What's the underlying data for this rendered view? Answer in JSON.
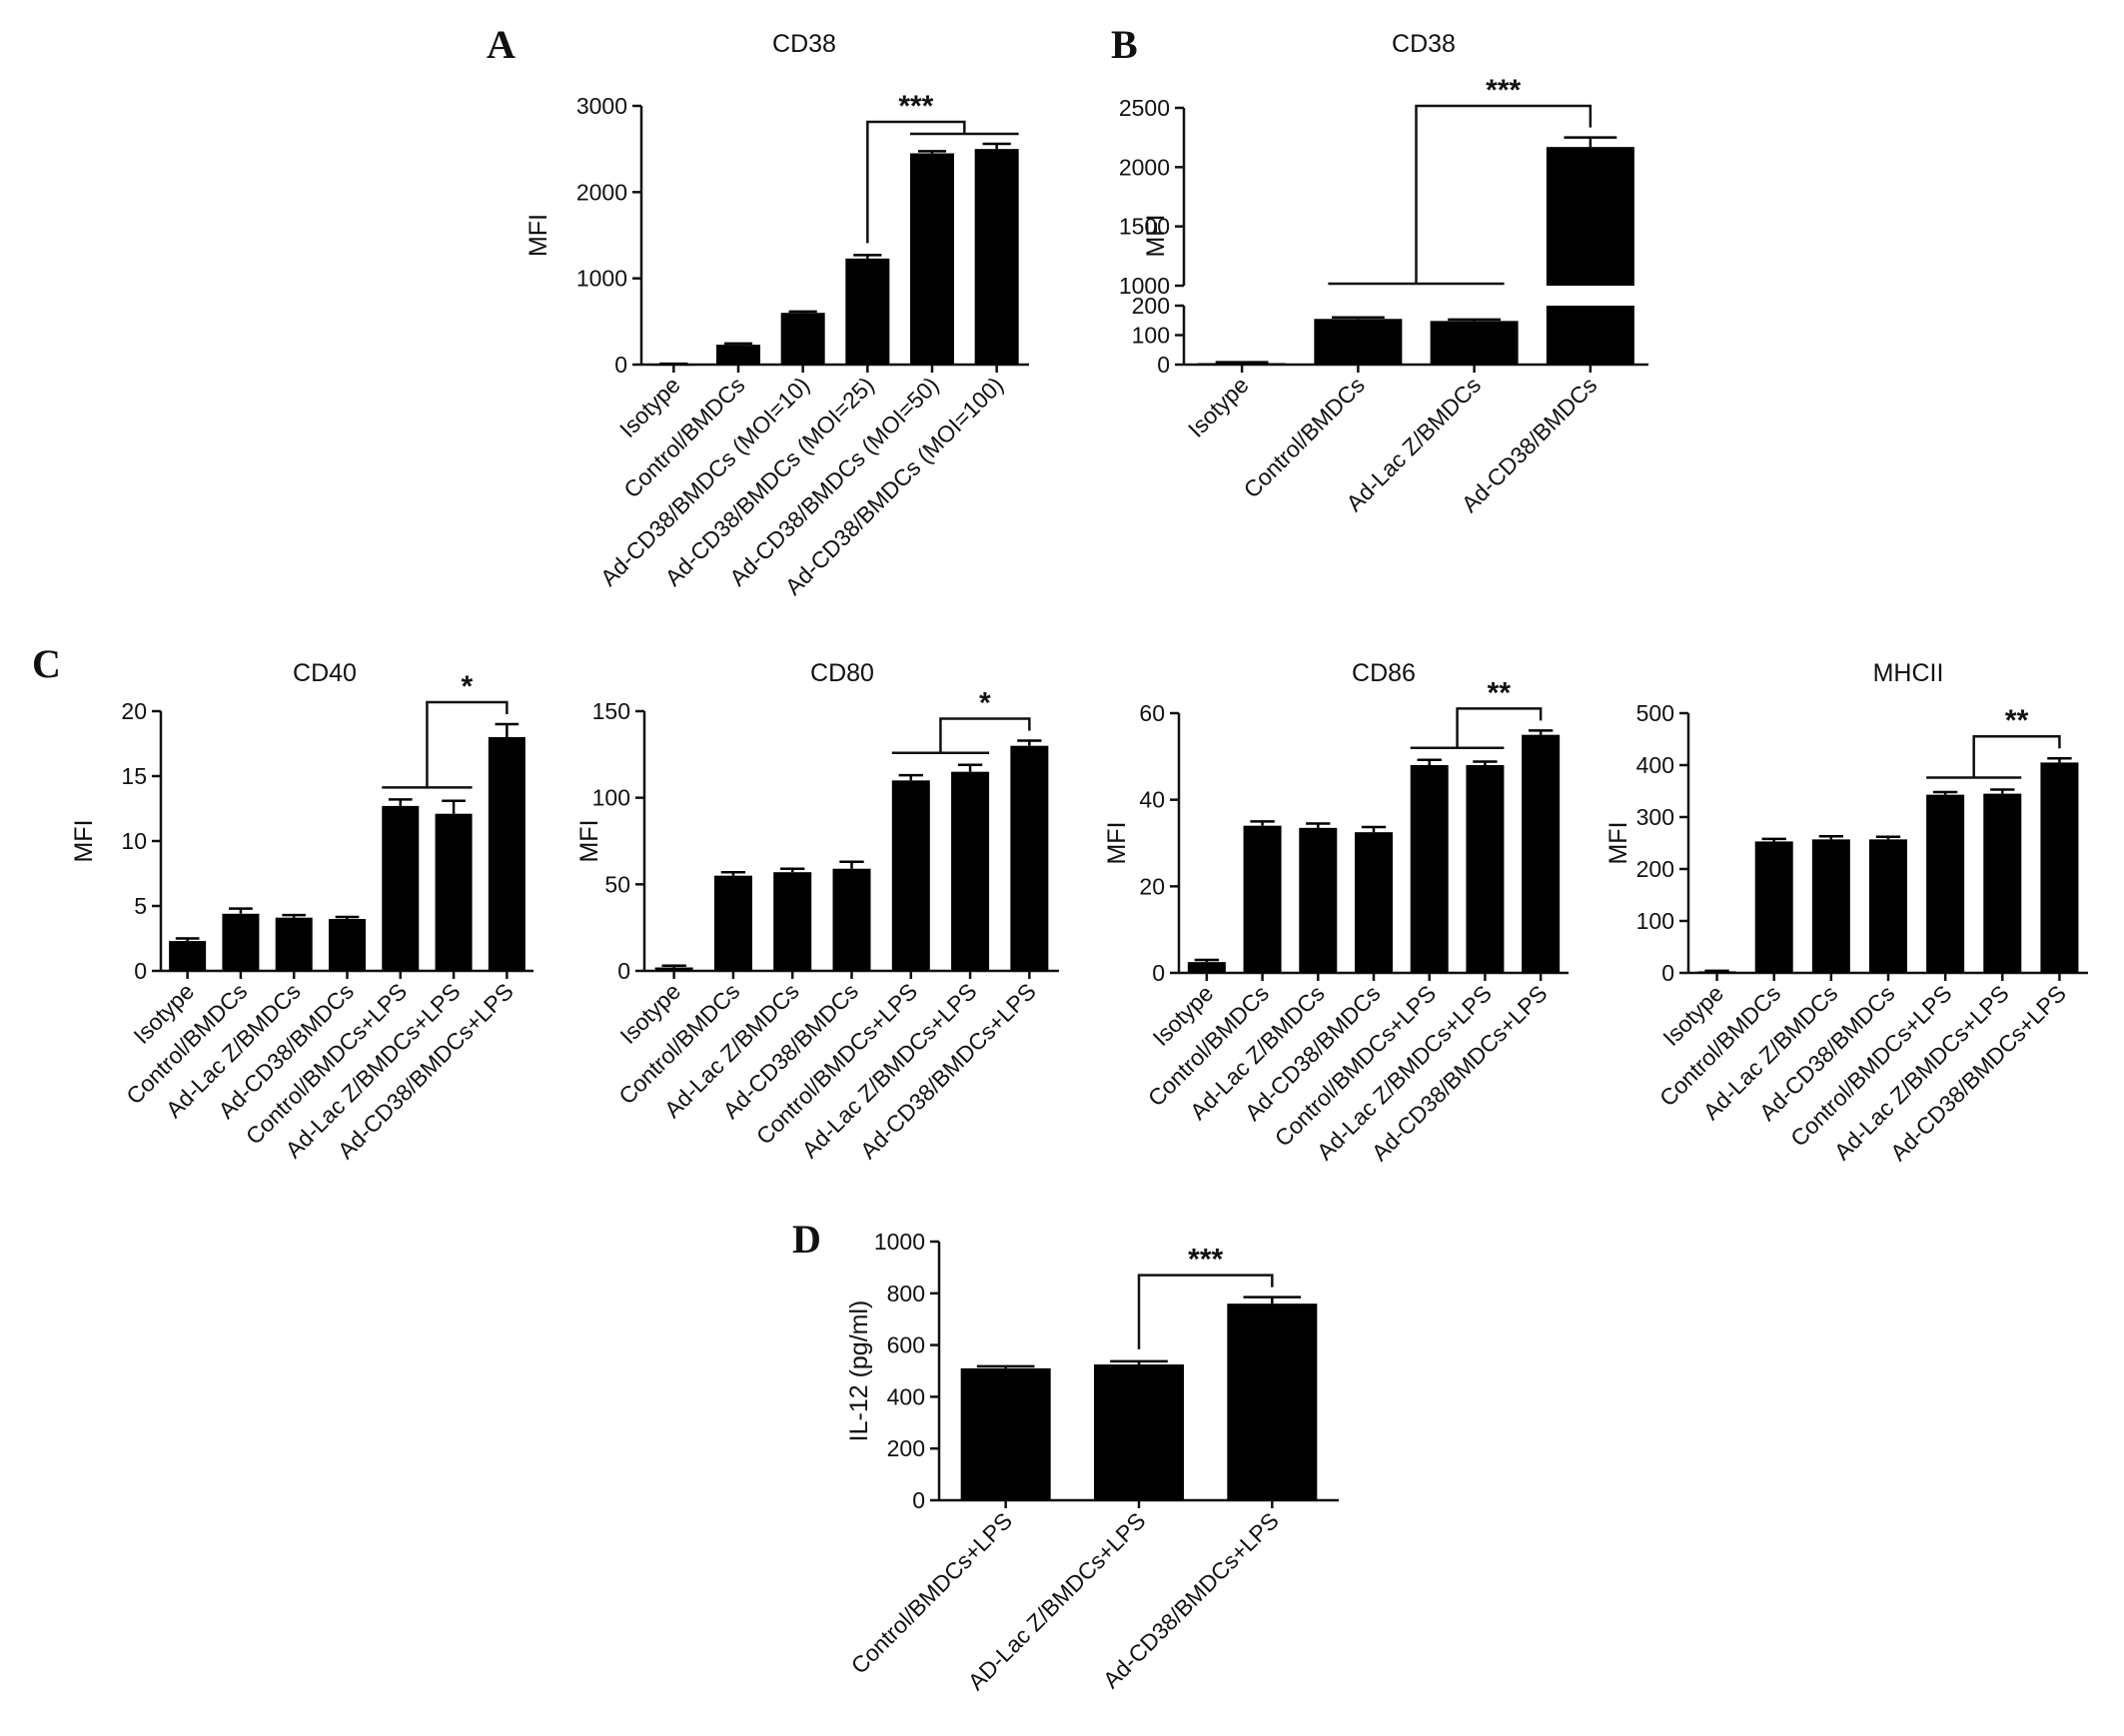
{
  "panel_labels": [
    "A",
    "B",
    "C",
    "D"
  ],
  "chart_data": [
    {
      "id": "A",
      "type": "bar",
      "title": "CD38",
      "ylabel": "MFI",
      "categories": [
        "Isotype",
        "Control/BMDCs",
        "Ad-CD38/BMDCs (MOI=10)",
        "Ad-CD38/BMDCs (MOI=25)",
        "Ad-CD38/BMDCs (MOI=50)",
        "Ad-CD38/BMDCs (MOI=100)"
      ],
      "values": [
        5,
        230,
        600,
        1230,
        2450,
        2500
      ],
      "errors": [
        5,
        15,
        15,
        40,
        25,
        60
      ],
      "ylim": [
        0,
        3000
      ],
      "yticks": [
        0,
        1000,
        2000,
        3000
      ],
      "significance": [
        {
          "label": "***",
          "from_group": [
            3
          ],
          "to_group": [
            4,
            5
          ]
        }
      ]
    },
    {
      "id": "B",
      "type": "bar",
      "title": "CD38",
      "ylabel": "MFI",
      "axis_break": {
        "lower": [
          0,
          200
        ],
        "upper": [
          1000,
          2500
        ]
      },
      "categories": [
        "Isotype",
        "Control/BMDCs",
        "Ad-Lac Z/BMDCs",
        "Ad-CD38/BMDCs"
      ],
      "values": [
        5,
        155,
        148,
        2170
      ],
      "errors": [
        3,
        5,
        5,
        80
      ],
      "ylim": [
        0,
        2500
      ],
      "yticks": [
        0,
        100,
        200,
        1000,
        1500,
        2000,
        2500
      ],
      "significance": [
        {
          "label": "***",
          "from_group": [
            1,
            2
          ],
          "to_group": [
            3
          ]
        }
      ]
    },
    {
      "id": "C1",
      "type": "bar",
      "title": "CD40",
      "ylabel": "MFI",
      "categories": [
        "Isotype",
        "Control/BMDCs",
        "Ad-Lac Z/BMDCs",
        "Ad-CD38/BMDCs",
        "Control/BMDCs+LPS",
        "Ad-Lac Z/BMDCs+LPS",
        "Ad-CD38/BMDCs+LPS"
      ],
      "values": [
        2.3,
        4.4,
        4.1,
        4.0,
        12.7,
        12.1,
        18.0
      ],
      "errors": [
        0.2,
        0.4,
        0.2,
        0.15,
        0.5,
        1.0,
        1.0
      ],
      "ylim": [
        0,
        20
      ],
      "yticks": [
        0,
        5,
        10,
        15,
        20
      ],
      "significance": [
        {
          "label": "*",
          "from_group": [
            4,
            5
          ],
          "to_group": [
            6
          ]
        }
      ]
    },
    {
      "id": "C2",
      "type": "bar",
      "title": "CD80",
      "ylabel": "MFI",
      "categories": [
        "Isotype",
        "Control/BMDCs",
        "Ad-Lac Z/BMDCs",
        "Ad-CD38/BMDCs",
        "Control/BMDCs+LPS",
        "Ad-Lac Z/BMDCs+LPS",
        "Ad-CD38/BMDCs+LPS"
      ],
      "values": [
        2,
        55,
        57,
        59,
        110,
        115,
        130
      ],
      "errors": [
        1,
        2,
        2,
        4,
        3,
        4,
        3
      ],
      "ylim": [
        0,
        150
      ],
      "yticks": [
        0,
        50,
        100,
        150
      ],
      "significance": [
        {
          "label": "*",
          "from_group": [
            4,
            5
          ],
          "to_group": [
            6
          ]
        }
      ]
    },
    {
      "id": "C3",
      "type": "bar",
      "title": "CD86",
      "ylabel": "MFI",
      "categories": [
        "Isotype",
        "Control/BMDCs",
        "Ad-Lac Z/BMDCs",
        "Ad-CD38/BMDCs",
        "Control/BMDCs+LPS",
        "Ad-Lac Z/BMDCs+LPS",
        "Ad-CD38/BMDCs+LPS"
      ],
      "values": [
        2.5,
        34,
        33.5,
        32.5,
        48,
        48,
        55
      ],
      "errors": [
        0.5,
        1,
        1,
        1.2,
        1.2,
        0.8,
        1
      ],
      "ylim": [
        0,
        60
      ],
      "yticks": [
        0,
        20,
        40,
        60
      ],
      "significance": [
        {
          "label": "**",
          "from_group": [
            4,
            5
          ],
          "to_group": [
            6
          ]
        }
      ]
    },
    {
      "id": "C4",
      "type": "bar",
      "title": "MHCII",
      "ylabel": "MFI",
      "categories": [
        "Isotype",
        "Control/BMDCs",
        "Ad-Lac Z/BMDCs",
        "Ad-CD38/BMDCs",
        "Control/BMDCs+LPS",
        "Ad-Lac Z/BMDCs+LPS",
        "Ad-CD38/BMDCs+LPS"
      ],
      "values": [
        3,
        253,
        257,
        257,
        343,
        345,
        405
      ],
      "errors": [
        1,
        5,
        6,
        5,
        5,
        8,
        8
      ],
      "ylim": [
        0,
        500
      ],
      "yticks": [
        0,
        100,
        200,
        300,
        400,
        500
      ],
      "significance": [
        {
          "label": "**",
          "from_group": [
            4,
            5
          ],
          "to_group": [
            6
          ]
        }
      ]
    },
    {
      "id": "D",
      "type": "bar",
      "title": "",
      "ylabel": "IL-12 (pg/ml)",
      "categories": [
        "Control/BMDCs+LPS",
        "AD-Lac Z/BMDCs+LPS",
        "Ad-CD38/BMDCs+LPS"
      ],
      "values": [
        510,
        525,
        760
      ],
      "errors": [
        8,
        12,
        25
      ],
      "ylim": [
        0,
        1000
      ],
      "yticks": [
        0,
        200,
        400,
        600,
        800,
        1000
      ],
      "significance": [
        {
          "label": "***",
          "from_group": [
            1
          ],
          "to_group": [
            2
          ]
        }
      ]
    }
  ]
}
